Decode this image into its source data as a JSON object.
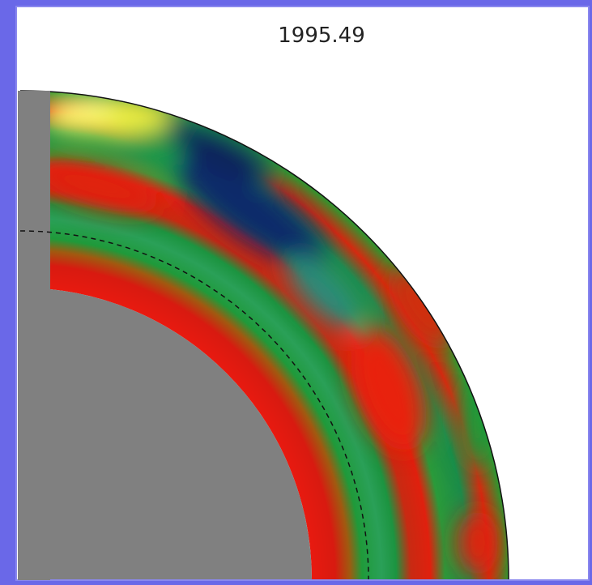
{
  "title": "1995.49"
}
